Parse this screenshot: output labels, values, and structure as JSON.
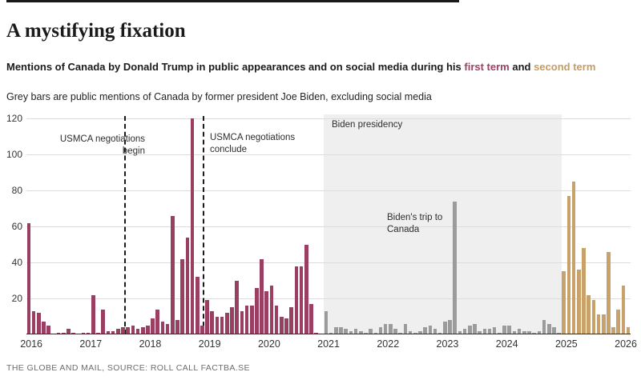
{
  "header": {
    "title": "A mystifying fixation",
    "subtitle": {
      "lead": "Mentions of Canada by Donald Trump in public appearances and on social media during his ",
      "first_term_label": "first term",
      "connector": " and ",
      "second_term_label": "second term"
    },
    "note": "Grey bars are public mentions of Canada by former president Joe Biden, excluding social media"
  },
  "colors": {
    "trump_first_term": "#9a3f62",
    "trump_second_term": "#c9a26b",
    "biden_grey": "#9b9b9b",
    "shade": "#efefef",
    "first_term_text": "#a23d64",
    "second_term_text": "#c69c62"
  },
  "chart_data": {
    "type": "bar",
    "title": "Mentions of Canada by Donald Trump and Joe Biden, monthly, 2016-2026",
    "xlabel": "",
    "ylabel": "",
    "ylim": [
      0,
      120
    ],
    "yticks": [
      20,
      40,
      60,
      80,
      100,
      120
    ],
    "grid": true,
    "year_labels": [
      "2016",
      "2017",
      "2018",
      "2019",
      "2020",
      "2021",
      "2022",
      "2023",
      "2024",
      "2025",
      "2026"
    ],
    "series": [
      {
        "name": "trump-first-term",
        "color_key": "trump_first_term",
        "start_index": 0,
        "values": [
          62,
          13,
          12,
          7,
          5,
          0,
          1,
          1,
          3,
          1,
          0,
          1,
          1,
          22,
          1,
          14,
          2,
          2,
          3,
          4,
          4,
          5,
          3,
          4,
          5,
          9,
          14,
          7,
          6,
          66,
          8,
          42,
          54,
          120,
          32,
          5,
          19,
          13,
          10,
          10,
          12,
          15,
          30,
          13,
          16,
          16,
          26,
          42,
          24,
          27,
          16,
          10,
          9,
          15,
          38,
          38,
          50,
          17,
          1,
          0
        ]
      },
      {
        "name": "biden",
        "color_key": "biden_grey",
        "start_index": 60,
        "values": [
          13,
          1,
          4,
          4,
          3,
          2,
          3,
          2,
          1,
          3,
          1,
          4,
          6,
          6,
          3,
          1,
          6,
          2,
          1,
          2,
          4,
          5,
          3,
          1,
          7,
          8,
          74,
          2,
          3,
          5,
          6,
          2,
          3,
          3,
          4,
          1,
          5,
          5,
          2,
          3,
          2,
          2,
          1,
          2,
          8,
          6,
          4,
          1
        ]
      },
      {
        "name": "trump-second-term",
        "color_key": "trump_second_term",
        "start_index": 108,
        "values": [
          35,
          77,
          85,
          36,
          48,
          22,
          19,
          11,
          11,
          46,
          4,
          14,
          27,
          4
        ]
      }
    ],
    "shaded_region": {
      "label": "Biden presidency",
      "start_index": 60,
      "end_index": 107.5
    },
    "dashed_lines": [
      {
        "id": "usmca-begin",
        "month_index": 19.25
      },
      {
        "id": "usmca-conclude",
        "month_index": 35.1
      }
    ],
    "annotations": {
      "usmca_begin": {
        "line1": "USMCA negotiations",
        "line2": "begin"
      },
      "usmca_conclude": {
        "line1": "USMCA negotiations",
        "line2": "conclude"
      },
      "biden_presidency": {
        "line1": "Biden presidency"
      },
      "biden_trip": {
        "line1": "Biden's trip to",
        "line2": "Canada"
      }
    }
  },
  "footer": {
    "source_line": "THE GLOBE AND MAIL, SOURCE: ROLL CALL FACTBA.SE"
  }
}
